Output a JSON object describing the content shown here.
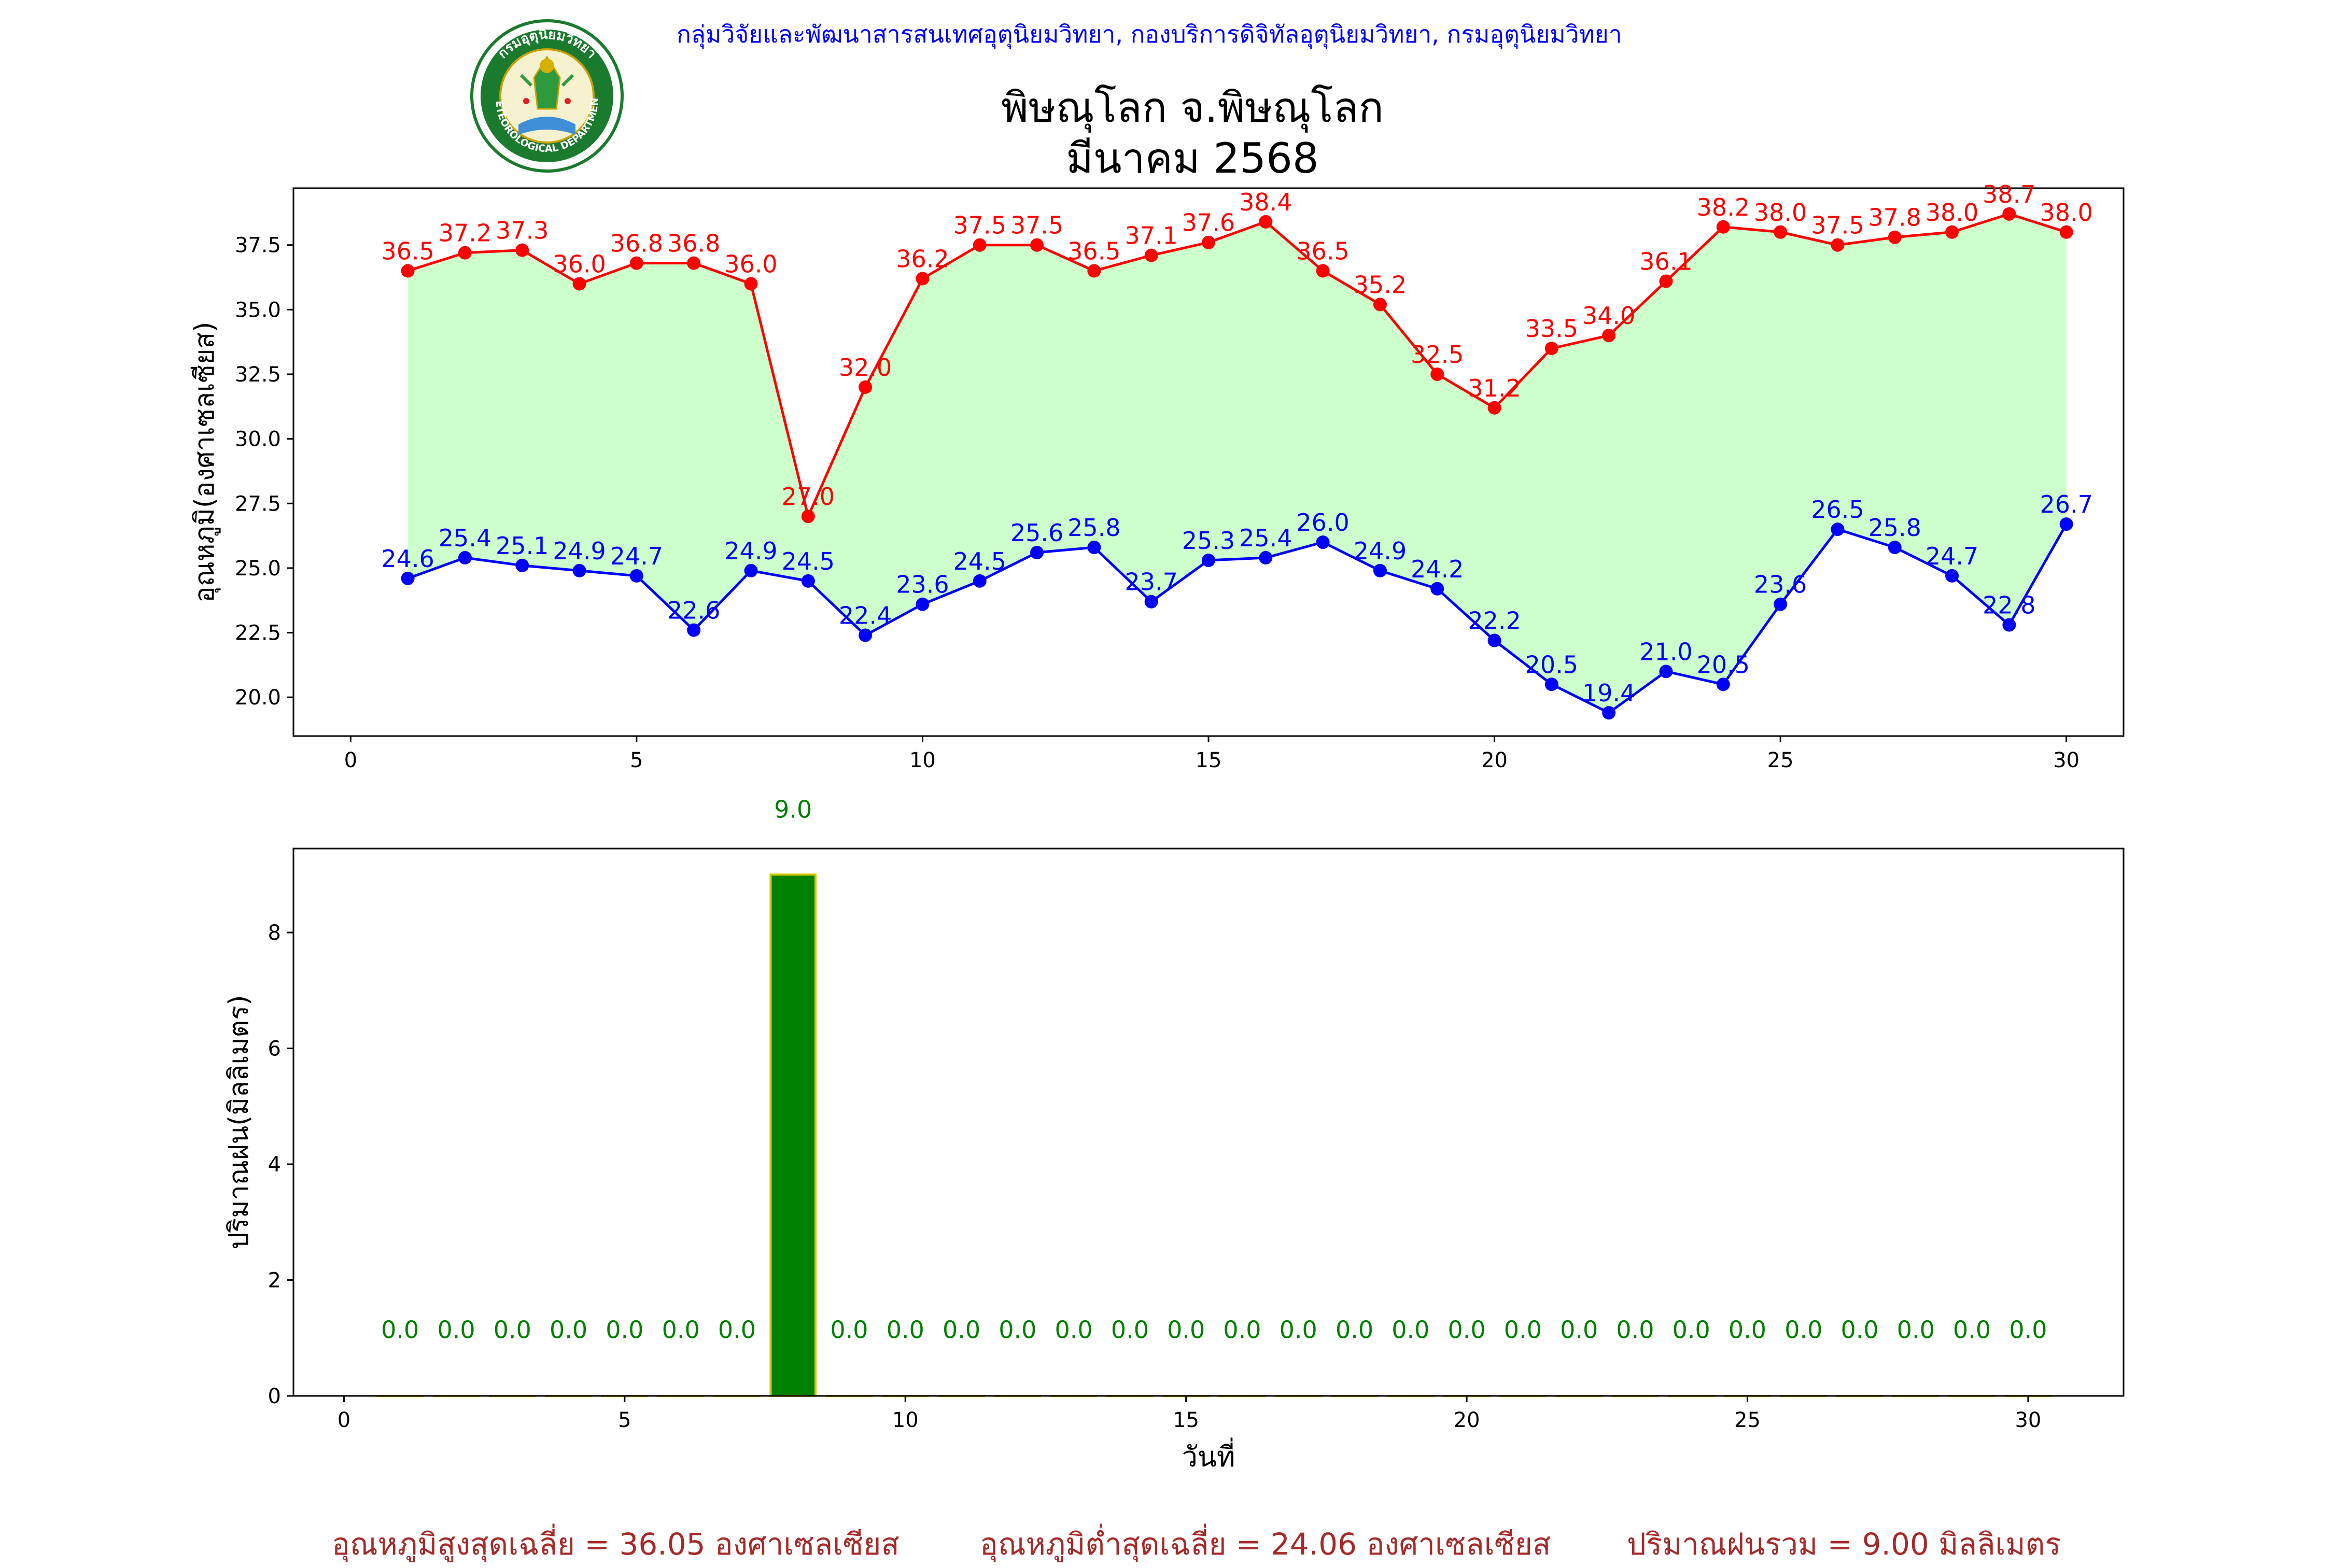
{
  "header": {
    "agency": "กลุ่มวิจัยและพัฒนาสารสนเทศอุตุนิยมวิทยา, กองบริการดิจิทัลอุตุนิยมวิทยา, กรมอุตุนิยมวิทยา",
    "title_line1": "พิษณุโลก จ.พิษณุโลก",
    "title_line2": "มีนาคม 2568",
    "logo_ring_top": "กรมอุตุนิยมวิทยา",
    "logo_ring_bottom": "METEOROLOGICAL DEPARTMENT"
  },
  "summary": {
    "avg_max": "อุณหภูมิสูงสุดเฉลี่ย = 36.05 องศาเซลเซียส",
    "avg_min": "อุณหภูมิต่ำสุดเฉลี่ย = 24.06 องศาเซลเซียส",
    "total_rain": "ปริมาณฝนรวม = 9.00 มิลลิเมตร"
  },
  "colors": {
    "max_line": "#ff0000",
    "min_line": "#0000ff",
    "fill": "#ccffcc",
    "rain_bar": "#008000",
    "rain_bar_edge": "#d4c800",
    "rain_label": "#008000",
    "summary_text": "#a52a2a",
    "agency_text": "#0000ff"
  },
  "chart_data": [
    {
      "type": "line",
      "ylabel": "อุณหภูมิ(องศาเซลเซียส)",
      "xlabel": "",
      "xlim": [
        -1,
        31
      ],
      "ylim": [
        18.5,
        39.7
      ],
      "xticks": [
        0,
        5,
        10,
        15,
        20,
        25,
        30
      ],
      "yticks": [
        20.0,
        22.5,
        25.0,
        27.5,
        30.0,
        32.5,
        35.0,
        37.5
      ],
      "x": [
        1,
        2,
        3,
        4,
        5,
        6,
        7,
        8,
        9,
        10,
        11,
        12,
        13,
        14,
        15,
        16,
        17,
        18,
        19,
        20,
        21,
        22,
        23,
        24,
        25,
        26,
        27,
        28,
        29,
        30
      ],
      "series": [
        {
          "key": "max",
          "values": [
            36.5,
            37.2,
            37.3,
            36.0,
            36.8,
            36.8,
            36.0,
            27.0,
            32.0,
            36.2,
            37.5,
            37.5,
            36.5,
            37.1,
            37.6,
            38.4,
            36.5,
            35.2,
            32.5,
            31.2,
            33.5,
            34.0,
            36.1,
            38.2,
            38.0,
            37.5,
            37.8,
            38.0,
            38.7,
            38.0
          ]
        },
        {
          "key": "min",
          "values": [
            24.6,
            25.4,
            25.1,
            24.9,
            24.7,
            22.6,
            24.9,
            24.5,
            22.4,
            23.6,
            24.5,
            25.6,
            25.8,
            23.7,
            25.3,
            25.4,
            26.0,
            24.9,
            24.2,
            22.2,
            20.5,
            19.4,
            21.0,
            20.5,
            23.6,
            26.5,
            25.8,
            24.7,
            22.8,
            26.7
          ]
        }
      ],
      "grid": false,
      "fill_between": true
    },
    {
      "type": "bar",
      "ylabel": "ปริมาณฝน(มิลลิเมตร)",
      "xlabel": "วันที่",
      "xlim": [
        -0.9,
        31.7
      ],
      "ylim": [
        0,
        9.45
      ],
      "xticks": [
        0,
        5,
        10,
        15,
        20,
        25,
        30
      ],
      "yticks": [
        0,
        2,
        4,
        6,
        8
      ],
      "x": [
        1,
        2,
        3,
        4,
        5,
        6,
        7,
        8,
        9,
        10,
        11,
        12,
        13,
        14,
        15,
        16,
        17,
        18,
        19,
        20,
        21,
        22,
        23,
        24,
        25,
        26,
        27,
        28,
        29,
        30
      ],
      "values": [
        0.0,
        0.0,
        0.0,
        0.0,
        0.0,
        0.0,
        0.0,
        9.0,
        0.0,
        0.0,
        0.0,
        0.0,
        0.0,
        0.0,
        0.0,
        0.0,
        0.0,
        0.0,
        0.0,
        0.0,
        0.0,
        0.0,
        0.0,
        0.0,
        0.0,
        0.0,
        0.0,
        0.0,
        0.0,
        0.0
      ],
      "grid": false
    }
  ]
}
